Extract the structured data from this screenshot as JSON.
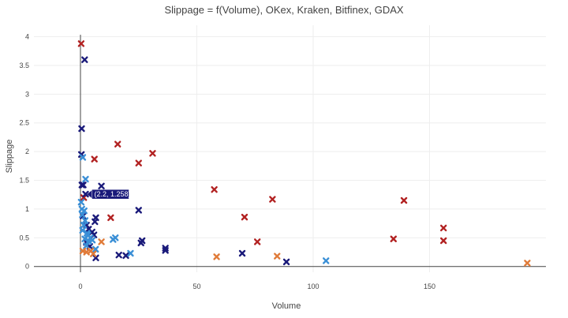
{
  "chart_data": {
    "type": "scatter",
    "title": "Slippage = f(Volume), OKex, Kraken, Bitfinex, GDAX",
    "xlabel": "Volume",
    "ylabel": "Slippage",
    "xlim": [
      -20,
      200
    ],
    "ylim": [
      -0.1,
      4.2
    ],
    "xticks": [
      0,
      50,
      100,
      150
    ],
    "yticks": [
      0,
      0.5,
      1,
      1.5,
      2,
      2.5,
      3,
      3.5,
      4
    ],
    "grid": true,
    "legend": "none",
    "marker": "x",
    "series": [
      {
        "color": "#b22222",
        "points": [
          [
            0.3,
            3.88
          ],
          [
            1.4,
            1.2
          ],
          [
            6,
            1.87
          ],
          [
            13,
            0.85
          ],
          [
            16,
            2.13
          ],
          [
            25,
            1.8
          ],
          [
            31,
            1.97
          ],
          [
            57.5,
            1.34
          ],
          [
            70.5,
            0.86
          ],
          [
            82.5,
            1.17
          ],
          [
            76,
            0.43
          ],
          [
            134.5,
            0.48
          ],
          [
            139,
            1.15
          ],
          [
            156,
            0.67
          ],
          [
            156,
            0.45
          ]
        ]
      },
      {
        "color": "#1a1a7a",
        "points": [
          [
            1.8,
            3.6
          ],
          [
            0.5,
            2.4
          ],
          [
            0.4,
            1.95
          ],
          [
            0.6,
            1.42
          ],
          [
            1.2,
            1.42
          ],
          [
            2.2,
            1.26
          ],
          [
            9,
            1.4
          ],
          [
            1.1,
            0.88
          ],
          [
            6.6,
            0.85
          ],
          [
            6.2,
            0.78
          ],
          [
            2.6,
            0.72
          ],
          [
            3.5,
            0.65
          ],
          [
            5,
            0.6
          ],
          [
            5.8,
            0.55
          ],
          [
            2.5,
            0.42
          ],
          [
            4,
            0.35
          ],
          [
            6.6,
            0.15
          ],
          [
            16.5,
            0.2
          ],
          [
            19.5,
            0.19
          ],
          [
            25,
            0.98
          ],
          [
            26.5,
            0.45
          ],
          [
            26,
            0.41
          ],
          [
            36.5,
            0.32
          ],
          [
            36.5,
            0.28
          ],
          [
            69.5,
            0.23
          ],
          [
            88.5,
            0.08
          ]
        ]
      },
      {
        "color": "#3a8fd6",
        "points": [
          [
            1,
            1.9
          ],
          [
            2.2,
            1.52
          ],
          [
            0.3,
            1.12
          ],
          [
            0.6,
            1.0
          ],
          [
            1.6,
            0.97
          ],
          [
            0.8,
            0.9
          ],
          [
            2,
            0.8
          ],
          [
            1.4,
            0.72
          ],
          [
            0.9,
            0.63
          ],
          [
            2.8,
            0.58
          ],
          [
            3.2,
            0.55
          ],
          [
            1.9,
            0.48
          ],
          [
            4.2,
            0.5
          ],
          [
            3.6,
            0.44
          ],
          [
            5.1,
            0.46
          ],
          [
            14,
            0.47
          ],
          [
            15,
            0.5
          ],
          [
            2.5,
            0.36
          ],
          [
            6.5,
            0.3
          ],
          [
            21.5,
            0.23
          ],
          [
            105.5,
            0.1
          ]
        ]
      },
      {
        "color": "#e07b39",
        "points": [
          [
            1,
            0.27
          ],
          [
            2.6,
            0.25
          ],
          [
            4.4,
            0.27
          ],
          [
            9,
            0.43
          ],
          [
            58.5,
            0.17
          ],
          [
            84.5,
            0.18
          ],
          [
            192,
            0.06
          ],
          [
            5.5,
            0.22
          ]
        ]
      }
    ],
    "hover_label": {
      "x": 2.2,
      "y": 1.258,
      "text": "(2.2, 1.258)",
      "color": "#1a1a7a"
    }
  }
}
